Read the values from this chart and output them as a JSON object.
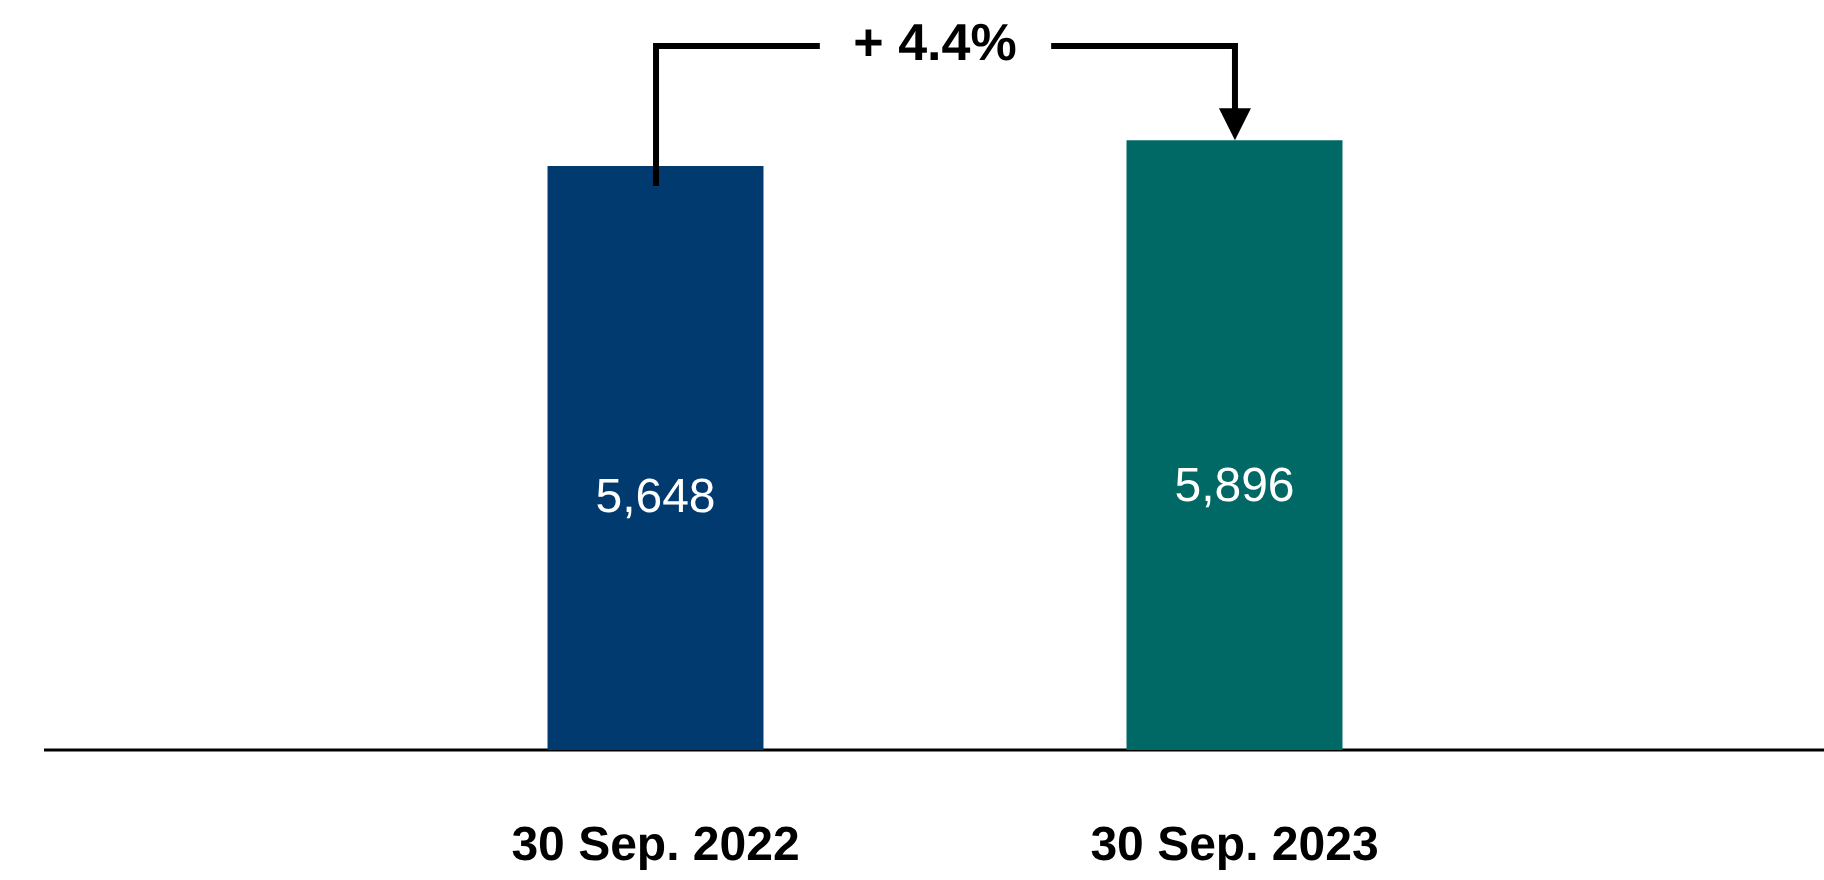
{
  "chart_data": {
    "type": "bar",
    "categories": [
      "30 Sep. 2022",
      "30 Sep. 2023"
    ],
    "values": [
      5648,
      5896
    ],
    "value_labels": [
      "5,648",
      "5,896"
    ],
    "colors": [
      "#003a6f",
      "#006865"
    ],
    "tick_labels": "x",
    "annotations": [
      "+ 4.4%"
    ]
  }
}
